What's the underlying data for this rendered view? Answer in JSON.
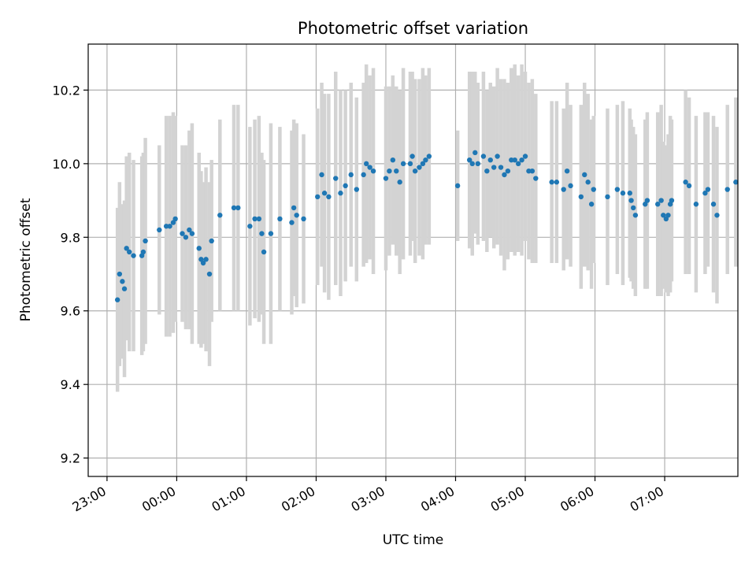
{
  "chart_data": {
    "type": "scatter",
    "title": "Photometric offset variation",
    "xlabel": "UTC time",
    "ylabel": "Photometric offset",
    "x_unit": "hours (UTC)",
    "x_ticks": [
      {
        "value": 23,
        "label": "23:00"
      },
      {
        "value": 24,
        "label": "00:00"
      },
      {
        "value": 25,
        "label": "01:00"
      },
      {
        "value": 26,
        "label": "02:00"
      },
      {
        "value": 27,
        "label": "03:00"
      },
      {
        "value": 28,
        "label": "04:00"
      },
      {
        "value": 29,
        "label": "05:00"
      },
      {
        "value": 30,
        "label": "06:00"
      },
      {
        "value": 31,
        "label": "07:00"
      }
    ],
    "y_ticks": [
      {
        "value": 9.2,
        "label": "9.2"
      },
      {
        "value": 9.4,
        "label": "9.4"
      },
      {
        "value": 9.6,
        "label": "9.6"
      },
      {
        "value": 9.8,
        "label": "9.8"
      },
      {
        "value": 10.0,
        "label": "10.0"
      },
      {
        "value": 10.2,
        "label": "10.2"
      }
    ],
    "xlim": [
      22.73,
      32.05
    ],
    "ylim": [
      9.15,
      10.325
    ],
    "grid": true,
    "marker_color": "#1f77b4",
    "errorbar_color": "#d3d3d3",
    "points": [
      [
        23.15,
        9.63,
        0.25
      ],
      [
        23.18,
        9.7,
        0.25
      ],
      [
        23.22,
        9.68,
        0.21
      ],
      [
        23.25,
        9.66,
        0.24
      ],
      [
        23.28,
        9.77,
        0.25
      ],
      [
        23.32,
        9.76,
        0.27
      ],
      [
        23.38,
        9.75,
        0.26
      ],
      [
        23.5,
        9.75,
        0.27
      ],
      [
        23.52,
        9.76,
        0.27
      ],
      [
        23.55,
        9.79,
        0.28
      ],
      [
        23.75,
        9.82,
        0.23
      ],
      [
        23.85,
        9.83,
        0.3
      ],
      [
        23.9,
        9.83,
        0.3
      ],
      [
        23.95,
        9.84,
        0.3
      ],
      [
        23.98,
        9.85,
        0.28
      ],
      [
        24.08,
        9.81,
        0.24
      ],
      [
        24.13,
        9.8,
        0.25
      ],
      [
        24.18,
        9.82,
        0.27
      ],
      [
        24.22,
        9.81,
        0.3
      ],
      [
        24.32,
        9.77,
        0.26
      ],
      [
        24.35,
        9.74,
        0.24
      ],
      [
        24.38,
        9.73,
        0.22
      ],
      [
        24.42,
        9.74,
        0.25
      ],
      [
        24.47,
        9.7,
        0.25
      ],
      [
        24.5,
        9.79,
        0.22
      ],
      [
        24.62,
        9.86,
        0.26
      ],
      [
        24.82,
        9.88,
        0.28
      ],
      [
        24.88,
        9.88,
        0.28
      ],
      [
        25.05,
        9.83,
        0.27
      ],
      [
        25.12,
        9.85,
        0.27
      ],
      [
        25.18,
        9.85,
        0.28
      ],
      [
        25.22,
        9.81,
        0.22
      ],
      [
        25.25,
        9.76,
        0.25
      ],
      [
        25.35,
        9.81,
        0.3
      ],
      [
        25.48,
        9.85,
        0.25
      ],
      [
        25.65,
        9.84,
        0.25
      ],
      [
        25.68,
        9.88,
        0.24
      ],
      [
        25.72,
        9.86,
        0.25
      ],
      [
        25.82,
        9.85,
        0.23
      ],
      [
        26.02,
        9.91,
        0.24
      ],
      [
        26.08,
        9.97,
        0.25
      ],
      [
        26.12,
        9.92,
        0.27
      ],
      [
        26.18,
        9.91,
        0.28
      ],
      [
        26.28,
        9.96,
        0.29
      ],
      [
        26.35,
        9.92,
        0.28
      ],
      [
        26.42,
        9.94,
        0.26
      ],
      [
        26.5,
        9.97,
        0.25
      ],
      [
        26.58,
        9.93,
        0.25
      ],
      [
        26.68,
        9.97,
        0.25
      ],
      [
        26.72,
        10.0,
        0.27
      ],
      [
        26.77,
        9.99,
        0.25
      ],
      [
        26.82,
        9.98,
        0.28
      ],
      [
        27.0,
        9.96,
        0.25
      ],
      [
        27.05,
        9.98,
        0.23
      ],
      [
        27.1,
        10.01,
        0.23
      ],
      [
        27.15,
        9.98,
        0.23
      ],
      [
        27.2,
        9.95,
        0.25
      ],
      [
        27.25,
        10.0,
        0.26
      ],
      [
        27.35,
        10.0,
        0.25
      ],
      [
        27.38,
        10.02,
        0.23
      ],
      [
        27.42,
        9.98,
        0.25
      ],
      [
        27.48,
        9.99,
        0.24
      ],
      [
        27.53,
        10.0,
        0.26
      ],
      [
        27.57,
        10.01,
        0.23
      ],
      [
        27.62,
        10.02,
        0.24
      ],
      [
        28.03,
        9.94,
        0.15
      ],
      [
        28.2,
        10.01,
        0.24
      ],
      [
        28.24,
        10.0,
        0.25
      ],
      [
        28.28,
        10.03,
        0.22
      ],
      [
        28.32,
        10.0,
        0.22
      ],
      [
        28.4,
        10.02,
        0.23
      ],
      [
        28.45,
        9.98,
        0.22
      ],
      [
        28.5,
        10.01,
        0.21
      ],
      [
        28.55,
        9.99,
        0.22
      ],
      [
        28.6,
        10.02,
        0.24
      ],
      [
        28.65,
        9.99,
        0.24
      ],
      [
        28.7,
        9.97,
        0.26
      ],
      [
        28.75,
        9.98,
        0.24
      ],
      [
        28.8,
        10.01,
        0.25
      ],
      [
        28.85,
        10.01,
        0.26
      ],
      [
        28.9,
        10.0,
        0.24
      ],
      [
        28.95,
        10.01,
        0.26
      ],
      [
        29.0,
        10.02,
        0.23
      ],
      [
        29.05,
        9.98,
        0.24
      ],
      [
        29.1,
        9.98,
        0.25
      ],
      [
        29.15,
        9.96,
        0.23
      ],
      [
        29.38,
        9.95,
        0.22
      ],
      [
        29.45,
        9.95,
        0.22
      ],
      [
        29.55,
        9.93,
        0.22
      ],
      [
        29.6,
        9.98,
        0.24
      ],
      [
        29.65,
        9.94,
        0.22
      ],
      [
        29.8,
        9.91,
        0.25
      ],
      [
        29.85,
        9.97,
        0.25
      ],
      [
        29.9,
        9.95,
        0.24
      ],
      [
        29.95,
        9.89,
        0.23
      ],
      [
        29.98,
        9.93,
        0.2
      ],
      [
        30.18,
        9.91,
        0.24
      ],
      [
        30.32,
        9.93,
        0.23
      ],
      [
        30.4,
        9.92,
        0.25
      ],
      [
        30.5,
        9.92,
        0.23
      ],
      [
        30.52,
        9.9,
        0.22
      ],
      [
        30.55,
        9.88,
        0.22
      ],
      [
        30.58,
        9.86,
        0.22
      ],
      [
        30.72,
        9.89,
        0.23
      ],
      [
        30.75,
        9.9,
        0.24
      ],
      [
        30.9,
        9.89,
        0.25
      ],
      [
        30.95,
        9.9,
        0.26
      ],
      [
        30.98,
        9.86,
        0.2
      ],
      [
        31.02,
        9.85,
        0.2
      ],
      [
        31.05,
        9.86,
        0.22
      ],
      [
        31.08,
        9.89,
        0.24
      ],
      [
        31.1,
        9.9,
        0.22
      ],
      [
        31.3,
        9.95,
        0.25
      ],
      [
        31.35,
        9.94,
        0.24
      ],
      [
        31.45,
        9.89,
        0.24
      ],
      [
        31.58,
        9.92,
        0.22
      ],
      [
        31.62,
        9.93,
        0.21
      ],
      [
        31.7,
        9.89,
        0.24
      ],
      [
        31.75,
        9.86,
        0.24
      ],
      [
        31.9,
        9.93,
        0.23
      ],
      [
        32.02,
        9.95,
        0.23
      ]
    ]
  }
}
